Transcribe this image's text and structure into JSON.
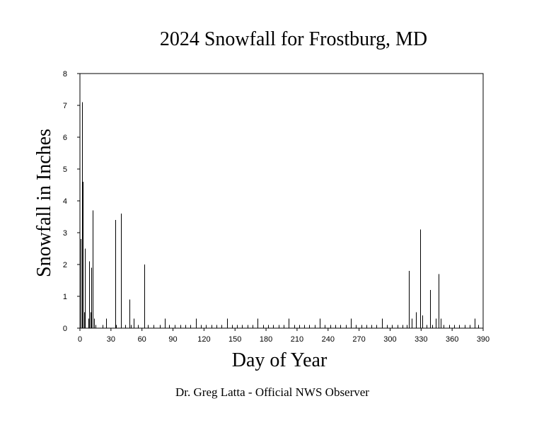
{
  "chart_data": {
    "type": "bar",
    "title": "2024 Snowfall for Frostburg, MD",
    "xlabel": "Day of Year",
    "ylabel": "Snowfall in Inches",
    "footer": "Dr. Greg Latta - Official NWS Observer",
    "xlim": [
      0,
      390
    ],
    "ylim": [
      0,
      8
    ],
    "x_ticks": [
      0,
      30,
      60,
      90,
      120,
      150,
      180,
      210,
      240,
      270,
      300,
      330,
      360,
      390
    ],
    "y_ticks": [
      0,
      1,
      2,
      3,
      4,
      5,
      6,
      7,
      8
    ],
    "grid": false,
    "bar_color": "#000000",
    "x": [
      1,
      2,
      3,
      4,
      5,
      8,
      9,
      10,
      11,
      12,
      14,
      15,
      22,
      25,
      34,
      35,
      40,
      44,
      48,
      49,
      52,
      56,
      62,
      66,
      71,
      77,
      82,
      86,
      92,
      97,
      102,
      107,
      112,
      117,
      122,
      127,
      132,
      137,
      142,
      147,
      152,
      157,
      162,
      167,
      172,
      177,
      182,
      187,
      192,
      197,
      202,
      207,
      212,
      217,
      222,
      227,
      232,
      237,
      242,
      247,
      252,
      257,
      262,
      267,
      272,
      277,
      282,
      287,
      292,
      297,
      302,
      307,
      312,
      316,
      318,
      321,
      325,
      329,
      331,
      335,
      339,
      341,
      344,
      347,
      349,
      352,
      357,
      362,
      367,
      372,
      377,
      382,
      385
    ],
    "values": [
      2.8,
      7.1,
      4.6,
      0.5,
      2.5,
      0.3,
      2.1,
      0.5,
      1.9,
      3.7,
      0.3,
      0.1,
      0.1,
      0.3,
      3.4,
      0.1,
      3.6,
      0.1,
      0.9,
      0.1,
      0.3,
      0.1,
      2.0,
      0.1,
      0.1,
      0.1,
      0.3,
      0.1,
      0.1,
      0.1,
      0.1,
      0.1,
      0.3,
      0.1,
      0.1,
      0.1,
      0.1,
      0.1,
      0.3,
      0.1,
      0.1,
      0.1,
      0.1,
      0.1,
      0.3,
      0.1,
      0.1,
      0.1,
      0.1,
      0.1,
      0.3,
      0.1,
      0.1,
      0.1,
      0.1,
      0.1,
      0.3,
      0.1,
      0.1,
      0.1,
      0.1,
      0.1,
      0.3,
      0.1,
      0.1,
      0.1,
      0.1,
      0.1,
      0.3,
      0.1,
      0.1,
      0.1,
      0.1,
      0.1,
      1.8,
      0.3,
      0.5,
      3.1,
      0.4,
      0.1,
      1.2,
      0.1,
      0.3,
      1.7,
      0.3,
      0.1,
      0.1,
      0.1,
      0.1,
      0.1,
      0.1,
      0.3,
      0.1
    ]
  }
}
